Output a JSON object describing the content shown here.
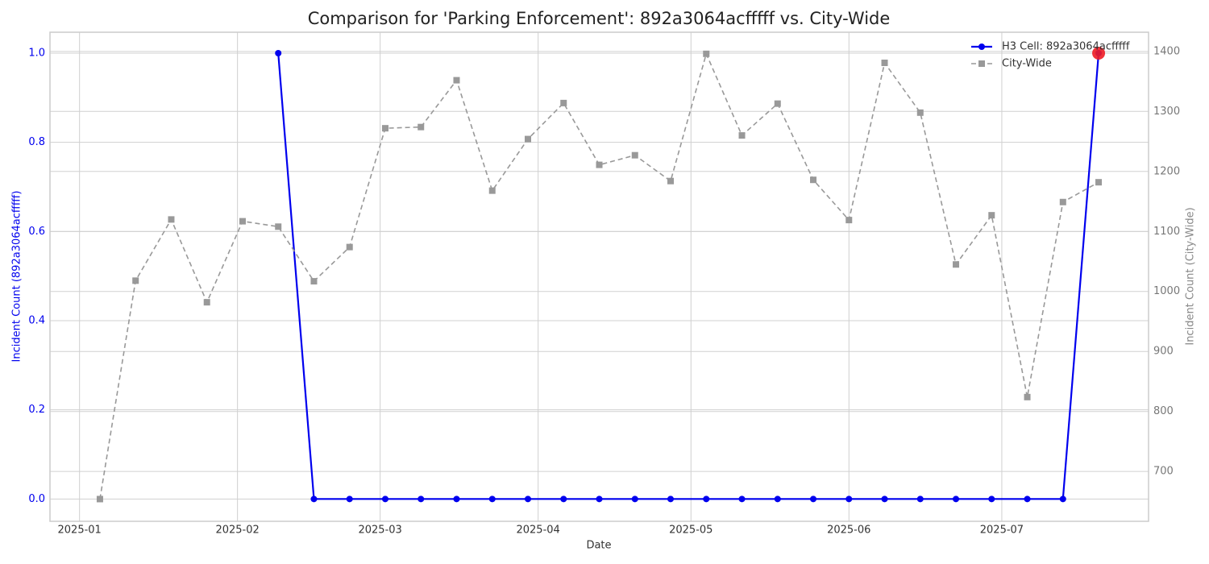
{
  "chart_data": {
    "type": "line",
    "title": "Comparison for 'Parking Enforcement': 892a3064acfffff vs. City-Wide",
    "xlabel": "Date",
    "ylabel": "Incident Count (892a3064acfffff)",
    "y2label": "Incident Count (City-Wide)",
    "categories": [
      null,
      null,
      null,
      null,
      null,
      null,
      null,
      null,
      null,
      null,
      null,
      null,
      null,
      null,
      null,
      null,
      null,
      null,
      null,
      null,
      null,
      null,
      null,
      null,
      null,
      null,
      null,
      null,
      null
    ],
    "xlim": [
      -1.4,
      29.4
    ],
    "xticks": [
      {
        "value": -0.571,
        "label": "2025-01"
      },
      {
        "value": 3.857,
        "label": "2025-02"
      },
      {
        "value": 7.857,
        "label": "2025-03"
      },
      {
        "value": 12.286,
        "label": "2025-04"
      },
      {
        "value": 16.571,
        "label": "2025-05"
      },
      {
        "value": 21,
        "label": "2025-06"
      },
      {
        "value": 25.286,
        "label": "2025-07"
      }
    ],
    "ylim": [
      -0.05,
      1.047
    ],
    "yticks": [
      {
        "value": 0,
        "label": "0.0"
      },
      {
        "value": 0.2,
        "label": "0.2"
      },
      {
        "value": 0.4,
        "label": "0.4"
      },
      {
        "value": 0.6,
        "label": "0.6"
      },
      {
        "value": 0.8,
        "label": "0.8"
      },
      {
        "value": 1,
        "label": "1.0"
      }
    ],
    "y2lim": [
      617,
      1432
    ],
    "y2ticks": [
      700,
      800,
      900,
      1000,
      1100,
      1200,
      1300,
      1400
    ],
    "grid": true,
    "legend": "upper right",
    "highlight_color": "#ee1c25",
    "series": [
      {
        "name": "H3 Cell: 892a3064acfffff",
        "color": "#0000ee",
        "marker": "circle",
        "dash": false,
        "values": [
          null,
          null,
          null,
          null,
          null,
          1,
          0,
          0,
          0,
          0,
          0,
          0,
          0,
          0,
          0,
          0,
          0,
          0,
          0,
          0,
          0,
          0,
          0,
          0,
          0,
          0,
          0,
          0,
          1
        ]
      },
      {
        "name": "City-Wide",
        "color": "#999999",
        "marker": "square",
        "dash": true,
        "axis": "y2",
        "values": [
          654,
          1018,
          1120,
          982,
          1117,
          1108,
          1017,
          1074,
          1272,
          1274,
          1352,
          1168,
          1254,
          1314,
          1211,
          1227,
          1184,
          1396,
          1260,
          1313,
          1186,
          1119,
          1381,
          1298,
          1045,
          1127,
          824,
          1149,
          1182
        ]
      }
    ]
  }
}
